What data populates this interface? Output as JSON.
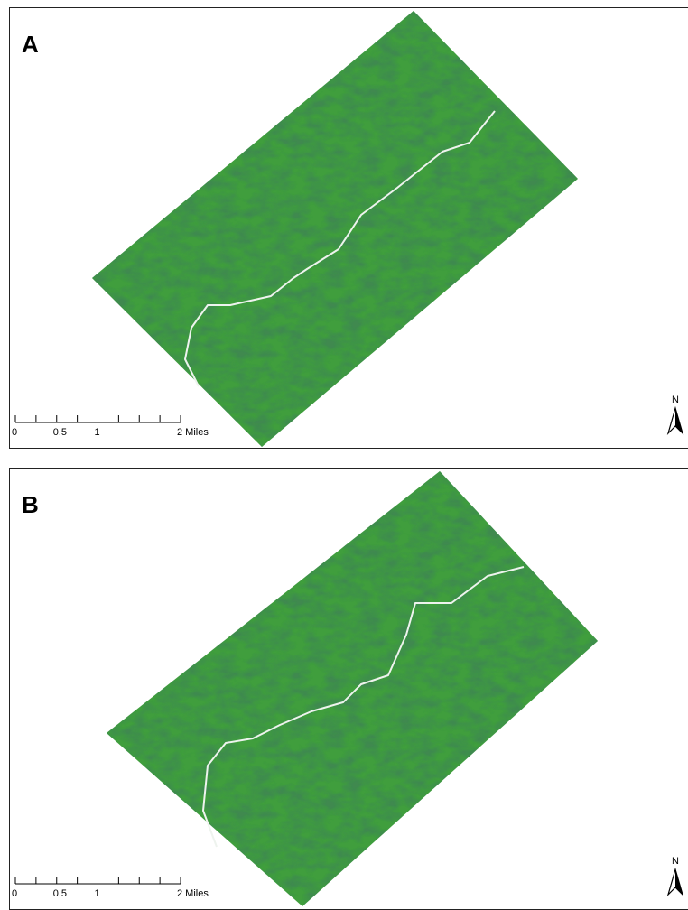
{
  "panels": [
    {
      "label": "A",
      "scale_labels": [
        "0",
        "0.5",
        "1",
        "2 Miles"
      ],
      "north": "N"
    },
    {
      "label": "B",
      "scale_labels": [
        "0",
        "0.5",
        "1",
        "2 Miles"
      ],
      "north": "N"
    }
  ]
}
